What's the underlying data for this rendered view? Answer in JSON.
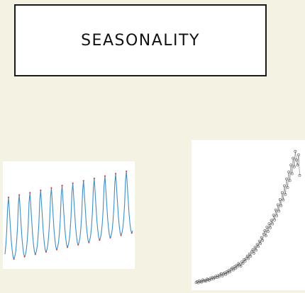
{
  "slide": {
    "title": "SEASONALITY"
  },
  "colors": {
    "background": "#f4f2e2",
    "panel": "#ffffff",
    "line_series": "#3f8fc7",
    "line_markers": "#d6453a",
    "scatter_line": "#7d7d7d",
    "scatter_points": "#555555"
  },
  "chart_data": [
    {
      "type": "line",
      "title": "",
      "xlabel": "",
      "ylabel": "",
      "grid": false,
      "x": [
        1,
        2,
        3,
        4,
        5,
        6,
        7,
        8,
        9,
        10,
        11,
        12,
        13,
        14,
        15,
        16,
        17,
        18,
        19,
        20,
        21,
        22,
        23,
        24,
        25,
        26,
        27,
        28,
        29,
        30,
        31,
        32,
        33,
        34,
        35,
        36,
        37,
        38,
        39,
        40,
        41,
        42,
        43,
        44,
        45,
        46,
        47,
        48,
        49,
        50,
        51,
        52,
        53,
        54,
        55,
        56,
        57,
        58,
        59,
        60,
        61,
        62,
        63,
        64,
        65,
        66,
        67,
        68,
        69,
        70,
        71,
        72,
        73,
        74,
        75,
        76,
        77,
        78,
        79,
        80,
        81,
        82,
        83,
        84,
        85,
        86,
        87,
        88,
        89,
        90,
        91,
        92,
        93,
        94,
        95,
        96,
        97,
        98,
        99,
        100,
        101,
        102,
        103,
        104,
        105,
        106,
        107,
        108,
        109,
        110,
        111,
        112,
        113,
        114,
        115,
        116,
        117,
        118,
        119,
        120,
        121,
        122,
        123,
        124,
        125,
        126,
        127,
        128,
        129,
        130,
        131,
        132,
        133,
        134,
        135,
        136,
        137,
        138,
        139,
        140,
        141,
        142,
        143,
        144
      ],
      "series": [
        {
          "values": [
            10,
            14,
            20,
            30,
            34,
            28,
            22,
            16,
            12,
            9,
            8,
            9,
            11,
            15,
            21,
            31,
            35,
            29,
            23,
            17,
            13,
            10,
            9,
            10,
            12,
            16,
            22,
            32,
            36,
            30,
            24,
            18,
            14,
            11,
            10,
            11,
            13,
            17,
            23,
            33,
            37,
            31,
            25,
            19,
            15,
            12,
            11,
            12,
            14,
            18,
            24,
            34,
            38,
            32,
            26,
            20,
            16,
            13,
            12,
            13,
            15,
            19,
            25,
            35,
            39,
            33,
            27,
            21,
            17,
            14,
            13,
            14,
            16,
            20,
            26,
            36,
            40,
            34,
            28,
            22,
            18,
            15,
            14,
            15,
            17,
            21,
            27,
            37,
            41,
            35,
            29,
            23,
            19,
            16,
            15,
            16,
            18,
            22,
            28,
            38,
            42,
            36,
            30,
            24,
            20,
            17,
            16,
            17,
            19,
            23,
            29,
            39,
            43,
            37,
            31,
            25,
            21,
            18,
            17,
            18,
            20,
            24,
            30,
            40,
            44,
            38,
            32,
            26,
            22,
            19,
            18,
            19,
            21,
            25,
            31,
            41,
            45,
            39,
            33,
            27,
            23,
            20,
            19,
            20
          ]
        }
      ],
      "xlim": [
        1,
        144
      ],
      "ylim": [
        5,
        48
      ]
    },
    {
      "type": "scatter",
      "title": "",
      "xlabel": "",
      "ylabel": "",
      "grid": false,
      "x": [
        1,
        2,
        3,
        4,
        5,
        6,
        7,
        8,
        9,
        10,
        11,
        12,
        13,
        14,
        15,
        16,
        17,
        18,
        19,
        20,
        21,
        22,
        23,
        24,
        25,
        26,
        27,
        28,
        29,
        30,
        31,
        32,
        33,
        34,
        35,
        36,
        37,
        38,
        39,
        40,
        41,
        42,
        43,
        44,
        45,
        46,
        47,
        48,
        49,
        50,
        51,
        52,
        53,
        54,
        55,
        56,
        57,
        58,
        59,
        60,
        61,
        62,
        63,
        64,
        65,
        66,
        67,
        68,
        69,
        70,
        71,
        72,
        73,
        74,
        75,
        76,
        77,
        78,
        79,
        80,
        81,
        82,
        83,
        84,
        85,
        86,
        87,
        88,
        89,
        90,
        91,
        92,
        93,
        94,
        95,
        96
      ],
      "series": [
        {
          "values": [
            2,
            2.5,
            1.8,
            3,
            2.4,
            2.2,
            3.5,
            2.8,
            3.1,
            2.7,
            4,
            3.6,
            3.3,
            4.4,
            3.9,
            5,
            4.2,
            4.8,
            5.6,
            4.9,
            6,
            5.3,
            6.4,
            7,
            5.8,
            6.9,
            7.5,
            6.6,
            8.2,
            7.6,
            9,
            8.1,
            9.6,
            10.4,
            9.2,
            11,
            10.1,
            12,
            11.2,
            13,
            12.3,
            11.5,
            14,
            13.1,
            15.2,
            14.4,
            16,
            17.3,
            15.8,
            18.5,
            17.2,
            19.8,
            21,
            18.9,
            22.4,
            20.7,
            24,
            22.8,
            26,
            24.5,
            28,
            26.3,
            30,
            32,
            29,
            34,
            31.5,
            36,
            33.7,
            38,
            35.9,
            41,
            38.2,
            44,
            40.6,
            47,
            43.3,
            50,
            46.5,
            54,
            49.8,
            58,
            53,
            62,
            57,
            66,
            61,
            70,
            65,
            74,
            69,
            78,
            73,
            70,
            76,
            64
          ]
        }
      ],
      "xlim": [
        0,
        97
      ],
      "ylim": [
        0,
        82
      ]
    }
  ]
}
